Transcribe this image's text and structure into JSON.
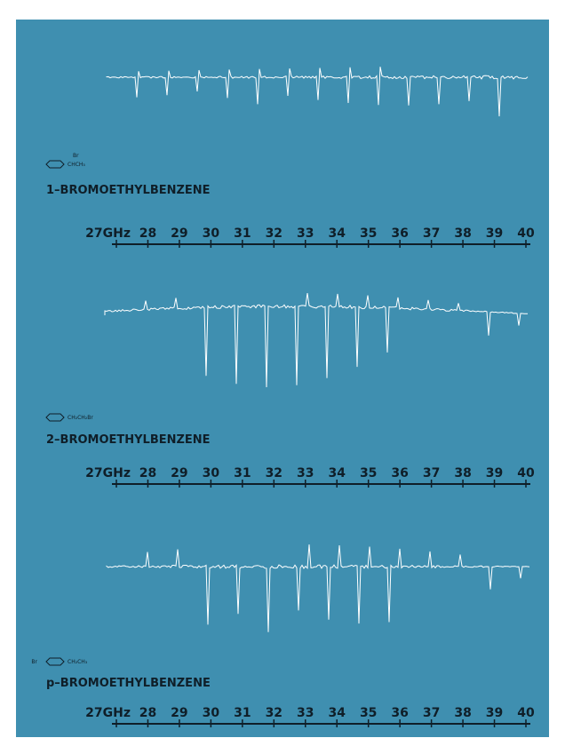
{
  "panels": [
    {
      "formula": [
        "Br",
        "CHCH₃"
      ],
      "name": "1–BROMOETHYLBENZENE",
      "ticks": [
        {
          "value": 27,
          "label": "27GHz"
        },
        28,
        29,
        30,
        31,
        32,
        33,
        34,
        35,
        36,
        37,
        38,
        39,
        40
      ]
    },
    {
      "formula": [
        "CH₂CH₂Br"
      ],
      "name": "2–BROMOETHYLBENZENE",
      "ticks": [
        {
          "value": 27,
          "label": "27GHz"
        },
        28,
        29,
        30,
        31,
        32,
        33,
        34,
        35,
        36,
        37,
        38,
        39,
        40
      ]
    },
    {
      "formula": [
        "Br",
        "CH₂CH₃"
      ],
      "name": "p–BROMOETHYLBENZENE",
      "ticks": [
        {
          "value": 27,
          "label": "27GHz"
        },
        28,
        29,
        30,
        31,
        32,
        33,
        34,
        35,
        36,
        37,
        38,
        39,
        40
      ]
    }
  ]
}
